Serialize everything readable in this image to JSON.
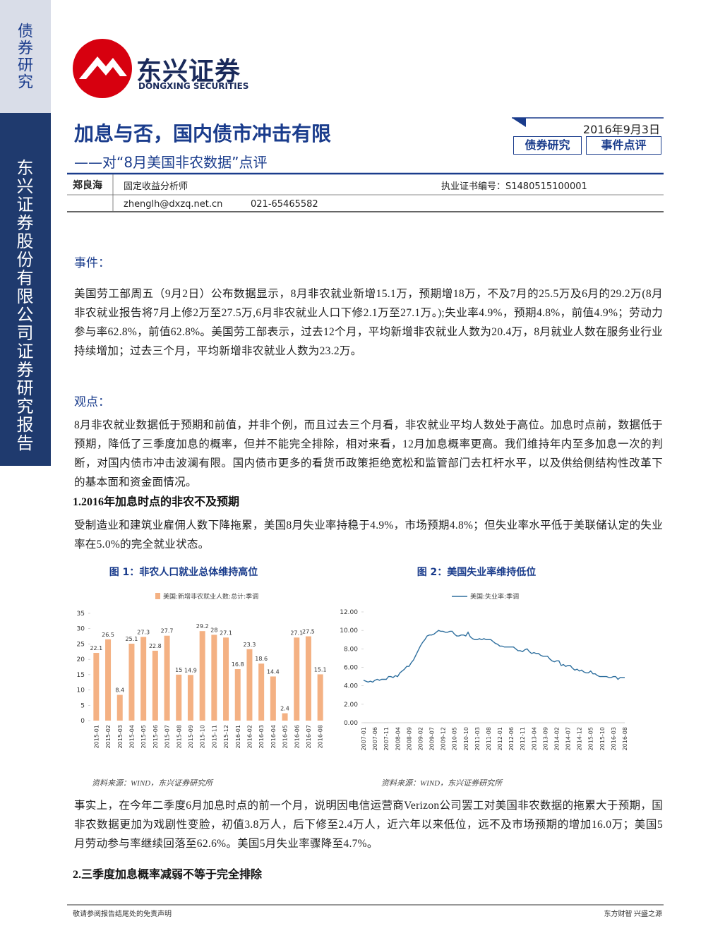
{
  "sidebar": {
    "category": "债券研究",
    "company": "东兴证券股份有限公司证券研究报告"
  },
  "header": {
    "logo_cn": "东兴证券",
    "logo_en": "DONGXING SECURITIES",
    "title": "加息与否，国内债市冲击有限",
    "subtitle": "——对“8月美国非农数据”点评",
    "date": "2016年9月3日",
    "tags": [
      "债券研究",
      "事件点评"
    ]
  },
  "author": {
    "name": "郑良海",
    "role": "固定收益分析师",
    "license": "执业证书编号：S1480515100001",
    "email": "zhenglh@dxzq.net.cn",
    "phone": "021-65465582"
  },
  "sections": [
    {
      "heading": "事件：",
      "paragraph": "美国劳工部周五（9月2日）公布数据显示，8月非农就业新增15.1万，预期增18万，不及7月的25.5万及6月的29.2万(8月非农就业报告将7月上修2万至27.5万,6月非农就业人口下修2.1万至27.1万。);失业率4.9%，预期4.8%，前值4.9%；劳动力参与率62.8%，前值62.8%。美国劳工部表示，过去12个月，平均新增非农就业人数为20.4万，8月就业人数在服务业行业持续增加；过去三个月，平均新增非农就业人数为23.2万。"
    },
    {
      "heading": "观点：",
      "paragraph": "8月非农就业数据低于预期和前值，并非个例，而且过去三个月看，非农就业平均人数处于高位。加息时点前，数据低于预期，降低了三季度加息的概率，但并不能完全排除，相对来看，12月加息概率更高。我们维持年内至多加息一次的判断，对国内债市冲击波澜有限。国内债市更多的看货币政策拒绝宽松和监管部门去杠杆水平，以及供给侧结构性改革下的基本面和资金面情况。"
    },
    {
      "heading": "1.2016年加息时点的非农不及预期",
      "paragraph": "受制造业和建筑业雇佣人数下降拖累，美国8月失业率持稳于4.9%，市场预期4.8%；但失业率水平低于美联储认定的失业率在5.0%的完全就业状态。"
    },
    {
      "paragraph": "事实上，在今年二季度6月加息时点的前一个月，说明因电信运营商Verizon公司罢工对美国非农数据的拖累大于预期，国非农数据更加为戏剧性变脸，初值3.8万人，后下修至2.4万人，近六年以来低位，远不及市场预期的增加16.0万；美国5月劳动参与率继续回落至62.6%。美国5月失业率骤降至4.7%。"
    },
    {
      "heading": "2.三季度加息概率减弱不等于完全排除"
    }
  ],
  "figures": [
    {
      "type": "bar",
      "title": "图 1：非农人口就业总体维持高位",
      "source": "资料来源：WIND，东兴证券研究所",
      "categories": [
        "2015-01",
        "2015-02",
        "2015-03",
        "2015-04",
        "2015-05",
        "2015-06",
        "2015-07",
        "2015-08",
        "2015-09",
        "2015-10",
        "2015-11",
        "2015-12",
        "2016-01",
        "2016-02",
        "2016-03",
        "2016-04",
        "2016-05",
        "2016-06",
        "2016-07",
        "2016-08"
      ],
      "series": [
        {
          "name": "美国:新增非农就业人数:总计:季调",
          "color": "#f4b183",
          "values": [
            22.1,
            26.5,
            8.4,
            25.1,
            27.3,
            22.8,
            27.7,
            15,
            14.9,
            29.2,
            28,
            27.1,
            16.8,
            23.3,
            18.6,
            14.4,
            2.4,
            27.1,
            27.5,
            15.1
          ]
        }
      ],
      "ylim": [
        0,
        35
      ],
      "yticks": [
        0,
        5,
        10,
        15,
        20,
        25,
        30,
        35
      ]
    },
    {
      "type": "line",
      "title": "图 2：美国失业率维持低位",
      "source": "资料来源：WIND，东兴证券研究所",
      "categories": [
        "2007-01",
        null,
        null,
        null,
        null,
        "2007-06",
        null,
        null,
        null,
        null,
        "2007-11",
        null,
        null,
        null,
        null,
        "2008-04",
        null,
        null,
        null,
        null,
        "2008-09",
        null,
        null,
        null,
        null,
        "2009-02",
        null,
        null,
        null,
        null,
        "2009-07",
        null,
        null,
        null,
        null,
        "2009-12",
        null,
        null,
        null,
        null,
        "2010-05",
        null,
        null,
        null,
        null,
        "2010-10",
        null,
        null,
        null,
        null,
        "2011-03",
        null,
        null,
        null,
        null,
        "2011-08",
        null,
        null,
        null,
        null,
        "2012-01",
        null,
        null,
        null,
        null,
        "2012-06",
        null,
        null,
        null,
        null,
        "2012-11",
        null,
        null,
        null,
        null,
        "2013-04",
        null,
        null,
        null,
        null,
        "2013-09",
        null,
        null,
        null,
        null,
        "2014-02",
        null,
        null,
        null,
        null,
        "2014-07",
        null,
        null,
        null,
        null,
        "2014-12",
        null,
        null,
        null,
        null,
        "2015-05",
        null,
        null,
        null,
        null,
        "2015-10",
        null,
        null,
        null,
        null,
        "2016-03",
        null,
        null,
        null,
        null,
        "2016-08"
      ],
      "series": [
        {
          "name": "美国:失业率:季调",
          "color": "#2e6f9e",
          "values": [
            4.6,
            4.5,
            4.4,
            4.5,
            4.4,
            4.6,
            4.7,
            4.6,
            4.7,
            4.7,
            4.7,
            5.0,
            5.0,
            4.9,
            5.1,
            5.0,
            5.4,
            5.6,
            5.8,
            6.1,
            6.1,
            6.5,
            6.8,
            7.3,
            7.8,
            8.3,
            8.7,
            9.0,
            9.4,
            9.5,
            9.5,
            9.6,
            9.8,
            10.0,
            9.9,
            9.9,
            9.8,
            9.8,
            9.9,
            9.9,
            9.6,
            9.4,
            9.4,
            9.5,
            9.5,
            9.4,
            9.8,
            9.3,
            9.1,
            9.0,
            9.0,
            9.1,
            9.0,
            9.1,
            9.0,
            9.0,
            9.0,
            8.8,
            8.6,
            8.5,
            8.3,
            8.3,
            8.2,
            8.2,
            8.2,
            8.2,
            8.2,
            8.0,
            7.8,
            7.8,
            7.7,
            7.9,
            8.0,
            7.7,
            7.5,
            7.6,
            7.5,
            7.5,
            7.3,
            7.2,
            7.2,
            7.2,
            6.9,
            6.7,
            6.6,
            6.7,
            6.7,
            6.2,
            6.3,
            6.1,
            6.2,
            6.2,
            5.9,
            5.7,
            5.8,
            5.6,
            5.7,
            5.5,
            5.4,
            5.4,
            5.6,
            5.3,
            5.3,
            5.1,
            5.0,
            5.0,
            5.0,
            5.0,
            4.9,
            4.9,
            5.0,
            5.0,
            4.7,
            4.9,
            4.9,
            4.9
          ]
        }
      ],
      "ylim": [
        0,
        12
      ],
      "yticks": [
        {
          "value": 0,
          "label": "0.00"
        },
        {
          "value": 2,
          "label": "2.00"
        },
        {
          "value": 4,
          "label": "4.00"
        },
        {
          "value": 6,
          "label": "6.00"
        },
        {
          "value": 8,
          "label": "8.00"
        },
        {
          "value": 10,
          "label": "10.00"
        },
        {
          "value": 12,
          "label": "12.00"
        }
      ]
    }
  ],
  "footer": {
    "left": "敬请参阅报告结尾处的免责声明",
    "right": "东方财智 兴盛之源"
  }
}
